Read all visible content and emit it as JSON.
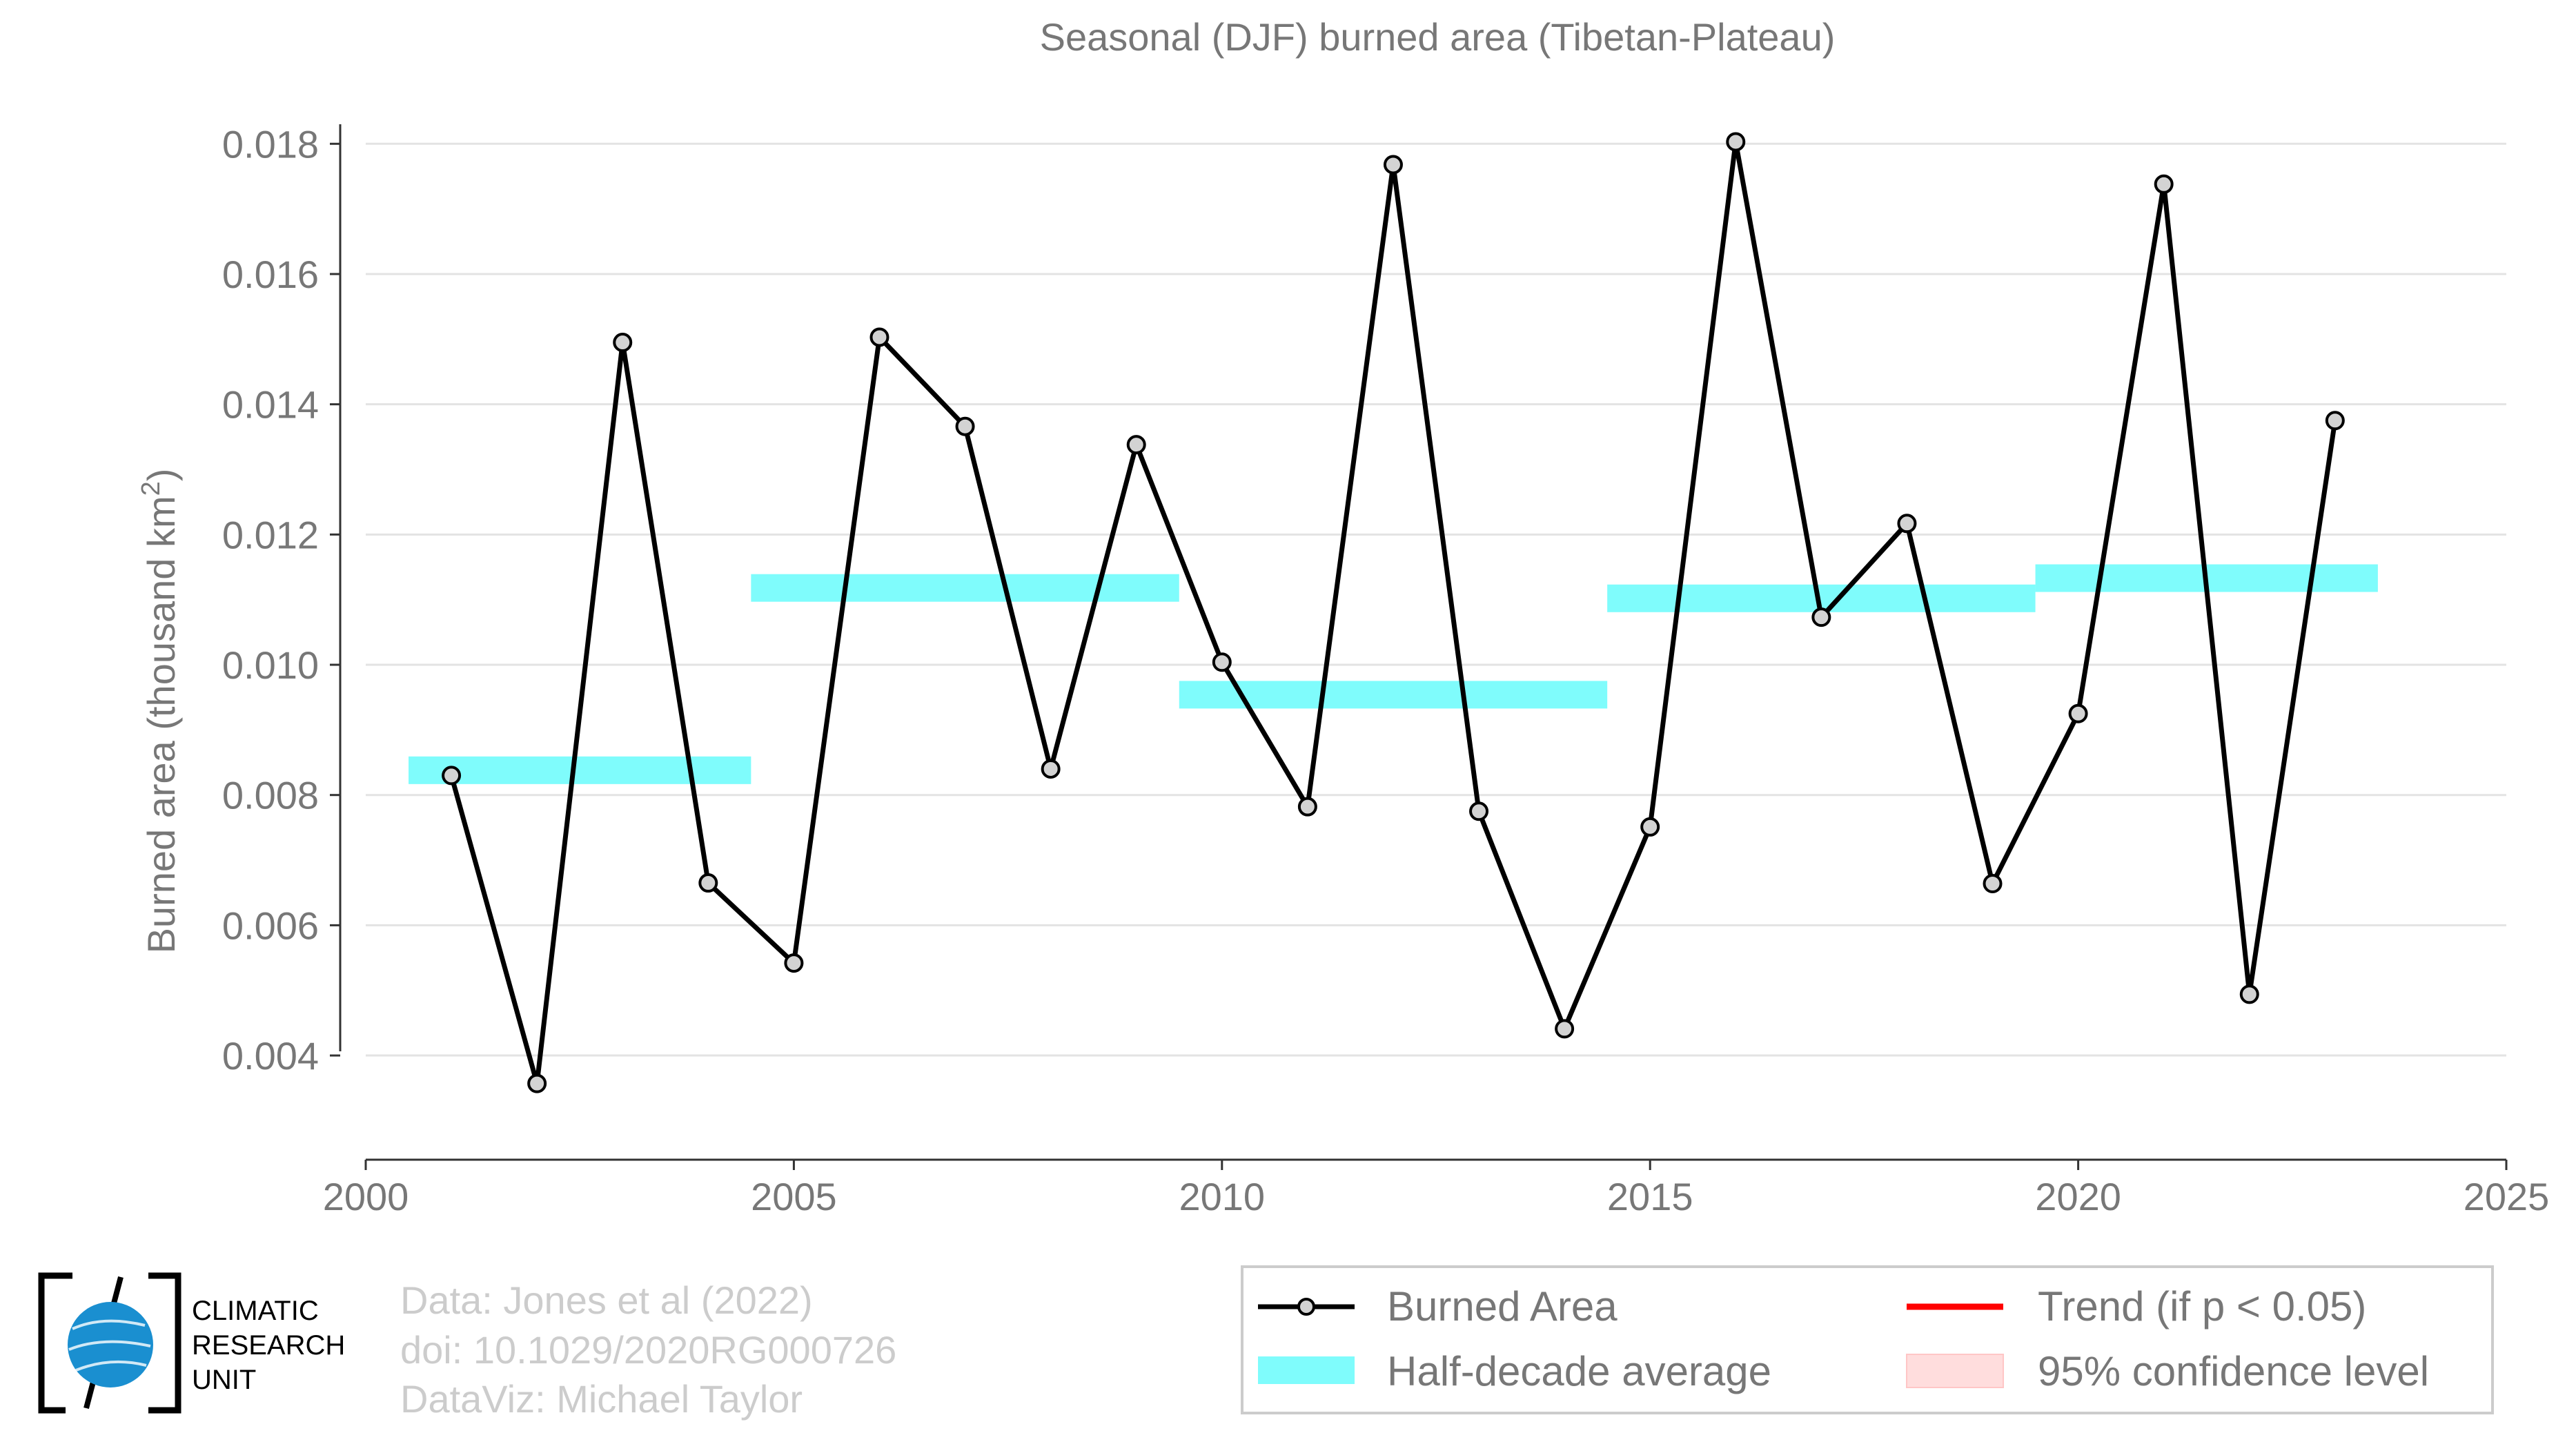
{
  "chart_data": {
    "type": "line",
    "title": "Seasonal (DJF) burned area (Tibetan-Plateau)",
    "ylabel": "Burned area (thousand km",
    "ylabel_sup": "2",
    "ylabel_close": ")",
    "xlim": [
      2000,
      2025
    ],
    "ylim": [
      0.0024,
      0.0183
    ],
    "x_ticks": [
      2000,
      2005,
      2010,
      2015,
      2020,
      2025
    ],
    "y_ticks": [
      0.004,
      0.006,
      0.008,
      0.01,
      0.012,
      0.014,
      0.016,
      0.018
    ],
    "y_tick_labels": [
      "0.004",
      "0.006",
      "0.008",
      "0.010",
      "0.012",
      "0.014",
      "0.016",
      "0.018"
    ],
    "grid": "horizontal",
    "series": [
      {
        "name": "Burned Area",
        "color": "#000000",
        "marker_fill": "#d3d3d3",
        "x": [
          2001,
          2002,
          2003,
          2004,
          2005,
          2006,
          2007,
          2008,
          2009,
          2010,
          2011,
          2012,
          2013,
          2014,
          2015,
          2016,
          2017,
          2018,
          2019,
          2020,
          2021,
          2022,
          2023
        ],
        "y": [
          0.0083,
          0.00357,
          0.01495,
          0.00665,
          0.00542,
          0.01503,
          0.01366,
          0.0084,
          0.01338,
          0.01004,
          0.00782,
          0.01768,
          0.00775,
          0.00441,
          0.00751,
          0.01803,
          0.01073,
          0.01217,
          0.00664,
          0.00925,
          0.01738,
          0.00494,
          0.01375
        ]
      }
    ],
    "half_decade_averages": {
      "name": "Half-decade average",
      "color": "#7ffcfc",
      "segments": [
        {
          "x_start": 2000.5,
          "x_end": 2004.5,
          "value": 0.00838
        },
        {
          "x_start": 2004.5,
          "x_end": 2009.5,
          "value": 0.01118
        },
        {
          "x_start": 2009.5,
          "x_end": 2014.5,
          "value": 0.00954
        },
        {
          "x_start": 2014.5,
          "x_end": 2019.5,
          "value": 0.01102
        },
        {
          "x_start": 2019.5,
          "x_end": 2023.5,
          "value": 0.01133
        }
      ]
    },
    "legend": {
      "placement": "bottom-right",
      "entries": [
        {
          "label": "Burned Area",
          "kind": "line-marker",
          "color": "#000000"
        },
        {
          "label": "Trend (if p < 0.05)",
          "kind": "line",
          "color": "#ff0000"
        },
        {
          "label": "Half-decade average",
          "kind": "band",
          "color": "#7ffcfc"
        },
        {
          "label": "95% confidence level",
          "kind": "band",
          "color": "#ffdddd"
        }
      ]
    }
  },
  "credits": {
    "line1": "Data: Jones et al (2022)",
    "line2": "doi: 10.1029/2020RG000726",
    "line3": "DataViz: Michael Taylor"
  },
  "logo": {
    "line1": "CLIMATIC",
    "line2": "RESEARCH",
    "line3": "UNIT",
    "globe_color": "#1a8fd0"
  }
}
